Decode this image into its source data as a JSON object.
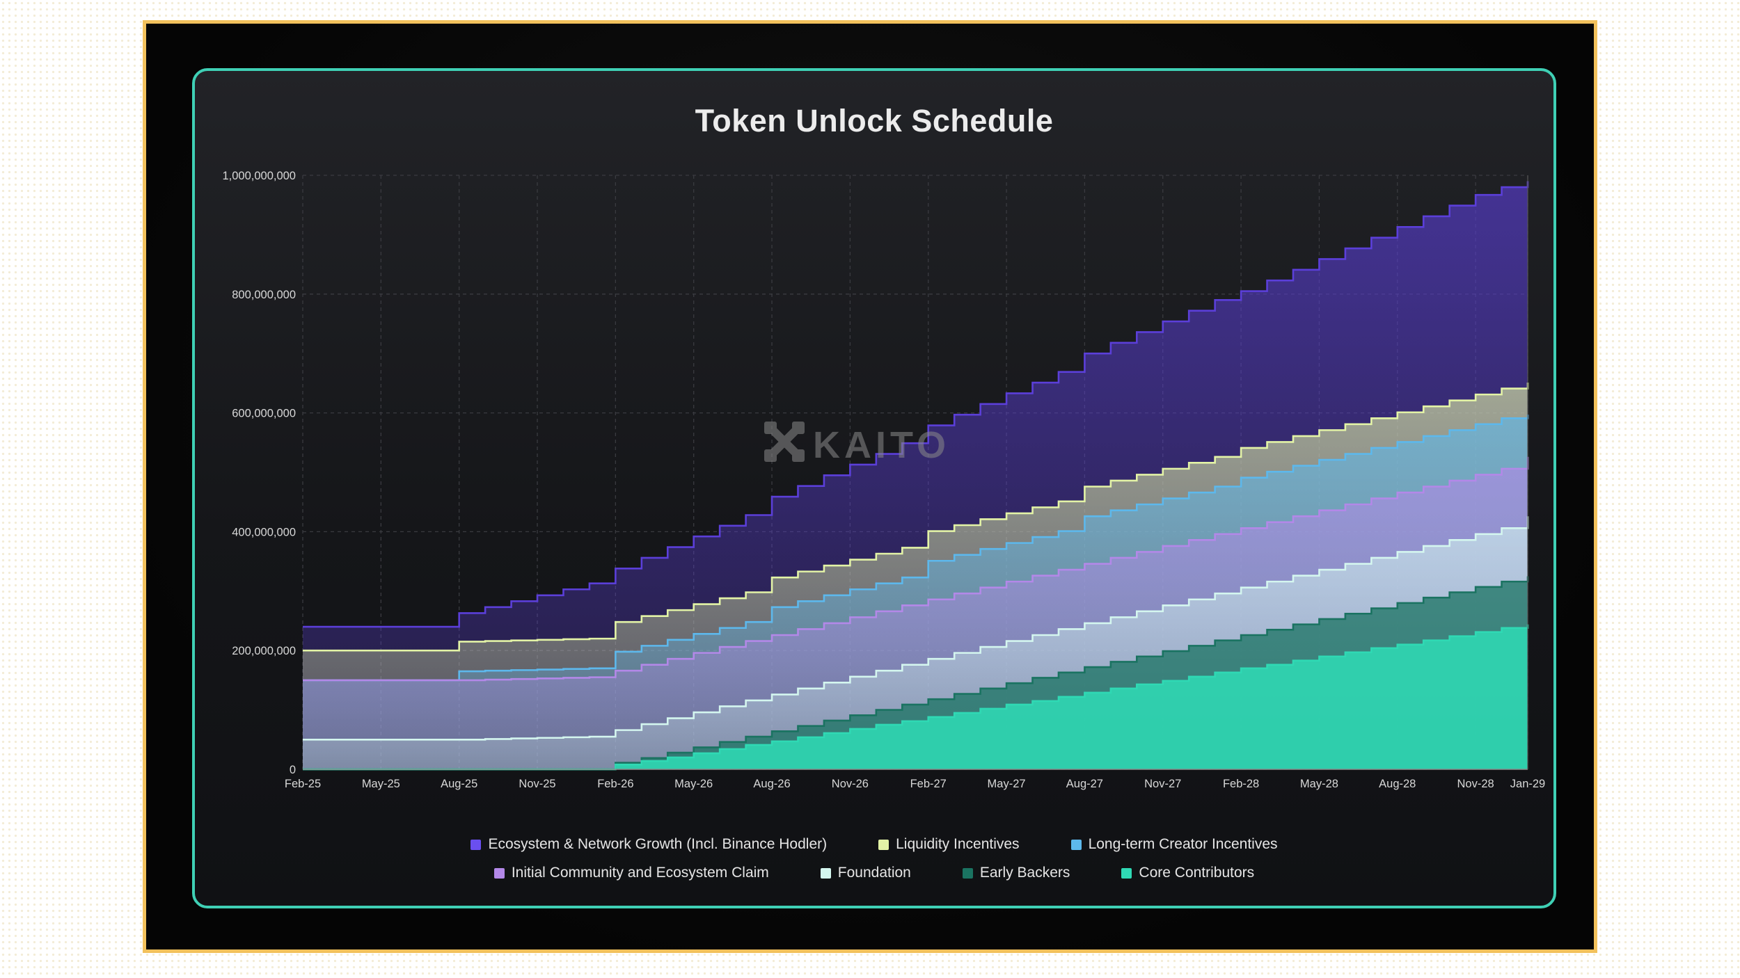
{
  "chart_data": {
    "type": "area",
    "title": "Token Unlock Schedule",
    "watermark": "KAITO",
    "ylim": [
      0,
      1000000000
    ],
    "y_ticks": [
      0,
      200000000,
      400000000,
      600000000,
      800000000,
      1000000000
    ],
    "y_tick_labels": [
      "0",
      "200,000,000",
      "400,000,000",
      "600,000,000",
      "800,000,000",
      "1,000,000,000"
    ],
    "x_tick_labels": [
      "Feb-25",
      "May-25",
      "Aug-25",
      "Nov-25",
      "Feb-26",
      "May-26",
      "Aug-26",
      "Nov-26",
      "Feb-27",
      "May-27",
      "Aug-27",
      "Nov-27",
      "Feb-28",
      "May-28",
      "Aug-28",
      "Nov-28",
      "Jan-29"
    ],
    "stacked": true,
    "step": true,
    "grid": true,
    "legend_position": "bottom",
    "series": [
      {
        "name": "Core Contributors",
        "color": "#2fd9b4",
        "cumulative_total": [
          0,
          0,
          0,
          0,
          0,
          0,
          0,
          0,
          0,
          0,
          0,
          0,
          8,
          14,
          20,
          27,
          34,
          41,
          47,
          54,
          61,
          68,
          75,
          81,
          88,
          95,
          102,
          109,
          115,
          122,
          129,
          136,
          143,
          149,
          156,
          163,
          170,
          176,
          183,
          190,
          197,
          204,
          210,
          217,
          224,
          231,
          238,
          244
        ]
      },
      {
        "name": "Early Backers",
        "color": "#1a7361",
        "cumulative_total": [
          0,
          0,
          0,
          0,
          0,
          0,
          0,
          0,
          0,
          0,
          0,
          0,
          11,
          19,
          28,
          37,
          46,
          55,
          64,
          73,
          82,
          91,
          100,
          109,
          118,
          127,
          136,
          145,
          154,
          163,
          172,
          181,
          190,
          199,
          208,
          217,
          226,
          235,
          244,
          253,
          262,
          271,
          280,
          289,
          298,
          307,
          316,
          325
        ]
      },
      {
        "name": "Foundation",
        "color": "#d4f6ef",
        "cumulative_total": [
          50,
          50,
          50,
          50,
          50,
          50,
          50,
          51,
          52,
          53,
          54,
          55,
          66,
          76,
          86,
          96,
          106,
          116,
          126,
          136,
          146,
          156,
          166,
          176,
          186,
          196,
          206,
          216,
          226,
          236,
          246,
          256,
          266,
          276,
          286,
          296,
          306,
          316,
          326,
          336,
          346,
          356,
          366,
          376,
          386,
          396,
          406,
          426
        ]
      },
      {
        "name": "Initial Community and Ecosystem Claim",
        "color": "#b388e8",
        "cumulative_total": [
          150,
          150,
          150,
          150,
          150,
          150,
          150,
          151,
          152,
          153,
          154,
          155,
          166,
          176,
          186,
          196,
          206,
          216,
          226,
          236,
          246,
          256,
          266,
          276,
          286,
          296,
          306,
          316,
          326,
          336,
          346,
          356,
          366,
          376,
          386,
          396,
          406,
          416,
          426,
          436,
          446,
          456,
          466,
          476,
          486,
          496,
          506,
          526
        ]
      },
      {
        "name": "Long-term Creator Incentives",
        "color": "#5db8ec",
        "cumulative_total": [
          150,
          150,
          150,
          150,
          150,
          150,
          165,
          166,
          167,
          168,
          169,
          170,
          198,
          208,
          218,
          228,
          238,
          248,
          273,
          283,
          293,
          303,
          313,
          323,
          351,
          361,
          371,
          381,
          391,
          401,
          426,
          436,
          446,
          456,
          466,
          476,
          491,
          501,
          511,
          521,
          531,
          541,
          551,
          561,
          571,
          581,
          591,
          597
        ]
      },
      {
        "name": "Liquidity Incentives",
        "color": "#e3f3a6",
        "cumulative_total": [
          200,
          200,
          200,
          200,
          200,
          200,
          215,
          216,
          217,
          218,
          219,
          220,
          248,
          258,
          268,
          278,
          288,
          298,
          323,
          333,
          343,
          353,
          363,
          373,
          401,
          411,
          421,
          431,
          441,
          451,
          476,
          486,
          496,
          506,
          516,
          526,
          541,
          551,
          561,
          571,
          581,
          591,
          601,
          611,
          621,
          631,
          641,
          651
        ]
      },
      {
        "name": "Ecosystem & Network Growth (Incl. Binance Hodler)",
        "color": "#5b3fd9",
        "cumulative_total": [
          240,
          240,
          240,
          240,
          240,
          240,
          263,
          273,
          283,
          293,
          303,
          313,
          338,
          356,
          374,
          392,
          410,
          428,
          459,
          477,
          495,
          513,
          531,
          549,
          579,
          597,
          615,
          633,
          651,
          669,
          700,
          718,
          736,
          754,
          772,
          790,
          805,
          823,
          841,
          859,
          877,
          895,
          913,
          931,
          949,
          967,
          980,
          990
        ]
      }
    ],
    "series_units": "million tokens",
    "x_period": "monthly, Feb-25 to Jan-29"
  },
  "legend": {
    "row1": [
      {
        "label": "Ecosystem & Network Growth (Incl. Binance Hodler)",
        "color": "#6a4ff0"
      },
      {
        "label": "Liquidity Incentives",
        "color": "#e3f3a6"
      },
      {
        "label": "Long-term Creator Incentives",
        "color": "#5db8ec"
      }
    ],
    "row2": [
      {
        "label": "Initial Community and Ecosystem Claim",
        "color": "#b388e8"
      },
      {
        "label": "Foundation",
        "color": "#d4f6ef"
      },
      {
        "label": "Early Backers",
        "color": "#1a7361"
      },
      {
        "label": "Core Contributors",
        "color": "#2fd9b4"
      }
    ]
  }
}
